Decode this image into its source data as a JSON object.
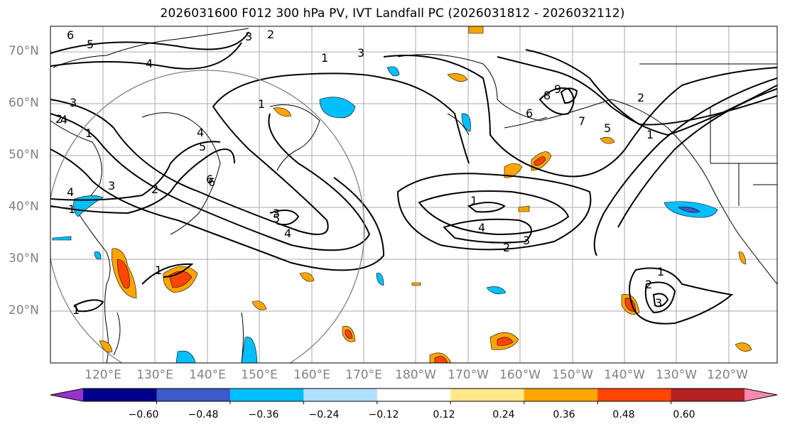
{
  "title": "2026031600 F012 300 hPa PV, IVT Landfall PC (2026031812 - 2026032112)",
  "lat_labels": [
    "70°N",
    "60°N",
    "50°N",
    "40°N",
    "30°N",
    "20°N"
  ],
  "lon_labels": [
    "120°E",
    "130°E",
    "140°E",
    "150°E",
    "160°E",
    "170°E",
    "180°W",
    "170°W",
    "160°W",
    "150°W",
    "140°W",
    "130°W",
    "120°W"
  ],
  "colorbar": {
    "colors": [
      "#9932cc",
      "#00008b",
      "#3b5bc9",
      "#00bfff",
      "#b0e0ff",
      "#ffffff",
      "#ffe88a",
      "#ffa500",
      "#ff4500",
      "#b22222",
      "#ff88b0"
    ],
    "ticks": [
      "−0.60",
      "−0.48",
      "−0.36",
      "−0.24",
      "−0.12",
      "0.12",
      "0.24",
      "0.36",
      "0.48",
      "0.60"
    ]
  },
  "contour_labels": [
    "6",
    "5",
    "4",
    "3",
    "2",
    "1",
    "3",
    "1",
    "3",
    "1",
    "4",
    "5",
    "6",
    "4",
    "3",
    "2",
    "1",
    "4",
    "5",
    "3",
    "2",
    "4",
    "1",
    "4",
    "3",
    "2",
    "1",
    "8",
    "9",
    "7",
    "6",
    "5",
    "1",
    "1",
    "2",
    "3",
    "1",
    "6",
    "2"
  ]
}
